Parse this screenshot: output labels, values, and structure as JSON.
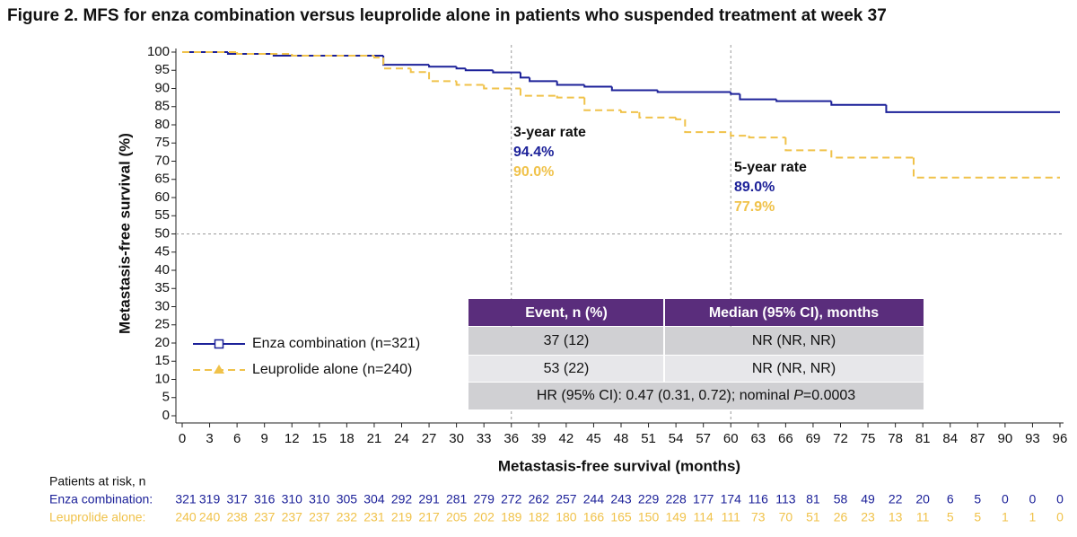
{
  "chart_data": {
    "type": "step",
    "title": "Figure 2. MFS for enza combination versus leuprolide alone in patients who suspended treatment at week 37",
    "xlabel": "Metastasis-free survival (months)",
    "ylabel": "Metastasis-free survival (%)",
    "xlim": [
      0,
      96
    ],
    "ylim": [
      0,
      100
    ],
    "xticks": [
      0,
      3,
      6,
      9,
      12,
      15,
      18,
      21,
      24,
      27,
      30,
      33,
      36,
      39,
      42,
      45,
      48,
      51,
      54,
      57,
      60,
      63,
      66,
      69,
      72,
      75,
      78,
      81,
      84,
      87,
      90,
      93,
      96
    ],
    "yticks": [
      0,
      5,
      10,
      15,
      20,
      25,
      30,
      35,
      40,
      45,
      50,
      55,
      60,
      65,
      70,
      75,
      80,
      85,
      90,
      95,
      100
    ],
    "reference_x": [
      36,
      60
    ],
    "reference_y": [
      50
    ],
    "legend": "lower left",
    "series": [
      {
        "name": "Enza combination (n=321)",
        "color": "#1c2199",
        "dashed": false,
        "marker": "square",
        "x": [
          0,
          5,
          10,
          22,
          27,
          30,
          31,
          34,
          37,
          38,
          41,
          44,
          47,
          52,
          60,
          61,
          65,
          71,
          77,
          96
        ],
        "values": [
          100,
          99.5,
          99,
          96.5,
          96,
          95.5,
          95,
          94.4,
          93,
          92,
          91,
          90.5,
          89.5,
          89,
          88.5,
          87,
          86.5,
          85.5,
          83.5,
          83.5
        ]
      },
      {
        "name": "Leuprolide alone (n=240)",
        "color": "#f0c24a",
        "dashed": true,
        "marker": "triangle",
        "x": [
          0,
          6,
          12,
          21,
          22,
          25,
          27,
          30,
          33,
          37,
          41,
          44,
          48,
          50,
          54,
          55,
          60,
          62,
          66,
          71,
          80,
          96
        ],
        "values": [
          100,
          99.5,
          99,
          98.5,
          95.5,
          94.5,
          92,
          91,
          90,
          88,
          87.5,
          84,
          83.5,
          82,
          81.5,
          78,
          77,
          76.5,
          73,
          71,
          65.5,
          65.5
        ]
      }
    ],
    "annotations": [
      {
        "heading": "3-year rate",
        "lines": [
          "94.4%",
          "90.0%"
        ]
      },
      {
        "heading": "5-year rate",
        "lines": [
          "89.0%",
          "77.9%"
        ]
      }
    ],
    "table": {
      "header": [
        "Event, n (%)",
        "Median (95% CI), months"
      ],
      "rows": [
        [
          "37 (12)",
          "NR (NR, NR)"
        ],
        [
          "53 (22)",
          "NR (NR, NR)"
        ]
      ],
      "hr_prefix": "HR (95% CI): 0.47 (0.31, 0.72); nominal ",
      "hr_p": "P",
      "hr_suffix": "=0.0003"
    },
    "at_risk": {
      "title": "Patients at risk, n",
      "labels": [
        "Enza combination:",
        "Leuprolide alone:"
      ],
      "rows": [
        [
          321,
          319,
          317,
          316,
          310,
          310,
          305,
          304,
          292,
          291,
          281,
          279,
          272,
          262,
          257,
          244,
          243,
          229,
          228,
          177,
          174,
          116,
          113,
          81,
          58,
          49,
          22,
          20,
          6,
          5,
          0,
          0,
          0
        ],
        [
          240,
          240,
          238,
          237,
          237,
          237,
          232,
          231,
          219,
          217,
          205,
          202,
          189,
          182,
          180,
          166,
          165,
          150,
          149,
          114,
          111,
          73,
          70,
          51,
          26,
          23,
          13,
          11,
          5,
          5,
          1,
          1,
          0
        ]
      ]
    }
  }
}
